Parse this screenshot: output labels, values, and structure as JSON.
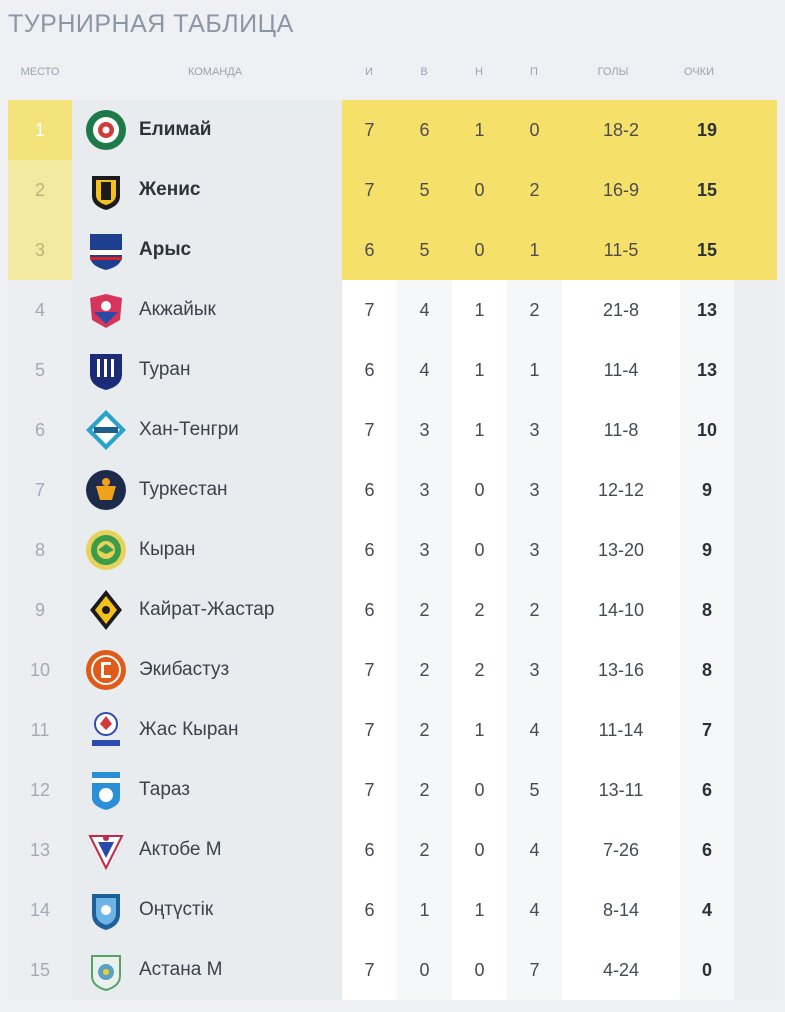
{
  "title": "ТУРНИРНАЯ ТАБЛИЦА",
  "columns": {
    "place": "МЕСТО",
    "team": "КОМАНДА",
    "games": "И",
    "wins": "В",
    "draws": "Н",
    "losses": "П",
    "goals": "ГОЛЫ",
    "points": "ОЧКИ"
  },
  "colors": {
    "highlight": "#f5e06a",
    "first_place": "#f4e27a"
  },
  "rows": [
    {
      "place": "1",
      "team": "Елимай",
      "logo": "elimai-logo",
      "games": "7",
      "wins": "6",
      "draws": "1",
      "losses": "0",
      "goals": "18-2",
      "points": "19"
    },
    {
      "place": "2",
      "team": "Женис",
      "logo": "zhenis-logo",
      "games": "7",
      "wins": "5",
      "draws": "0",
      "losses": "2",
      "goals": "16-9",
      "points": "15"
    },
    {
      "place": "3",
      "team": "Арыс",
      "logo": "arys-logo",
      "games": "6",
      "wins": "5",
      "draws": "0",
      "losses": "1",
      "goals": "11-5",
      "points": "15"
    },
    {
      "place": "4",
      "team": "Акжайык",
      "logo": "akzhaiyk-logo",
      "games": "7",
      "wins": "4",
      "draws": "1",
      "losses": "2",
      "goals": "21-8",
      "points": "13"
    },
    {
      "place": "5",
      "team": "Туран",
      "logo": "turan-logo",
      "games": "6",
      "wins": "4",
      "draws": "1",
      "losses": "1",
      "goals": "11-4",
      "points": "13"
    },
    {
      "place": "6",
      "team": "Хан-Тенгри",
      "logo": "khan-tengri-logo",
      "games": "7",
      "wins": "3",
      "draws": "1",
      "losses": "3",
      "goals": "11-8",
      "points": "10"
    },
    {
      "place": "7",
      "team": "Туркестан",
      "logo": "turkestan-logo",
      "games": "6",
      "wins": "3",
      "draws": "0",
      "losses": "3",
      "goals": "12-12",
      "points": "9"
    },
    {
      "place": "8",
      "team": "Кыран",
      "logo": "kyran-logo",
      "games": "6",
      "wins": "3",
      "draws": "0",
      "losses": "3",
      "goals": "13-20",
      "points": "9"
    },
    {
      "place": "9",
      "team": "Кайрат-Жастар",
      "logo": "kairat-zhastar-logo",
      "games": "6",
      "wins": "2",
      "draws": "2",
      "losses": "2",
      "goals": "14-10",
      "points": "8"
    },
    {
      "place": "10",
      "team": "Экибастуз",
      "logo": "ekibastuz-logo",
      "games": "7",
      "wins": "2",
      "draws": "2",
      "losses": "3",
      "goals": "13-16",
      "points": "8"
    },
    {
      "place": "11",
      "team": "Жас Кыран",
      "logo": "zhas-kyran-logo",
      "games": "7",
      "wins": "2",
      "draws": "1",
      "losses": "4",
      "goals": "11-14",
      "points": "7"
    },
    {
      "place": "12",
      "team": "Тараз",
      "logo": "taraz-logo",
      "games": "7",
      "wins": "2",
      "draws": "0",
      "losses": "5",
      "goals": "13-11",
      "points": "6"
    },
    {
      "place": "13",
      "team": "Актобе М",
      "logo": "aktobe-m-logo",
      "games": "6",
      "wins": "2",
      "draws": "0",
      "losses": "4",
      "goals": "7-26",
      "points": "6"
    },
    {
      "place": "14",
      "team": "Оңтүстік",
      "logo": "ontustik-logo",
      "games": "6",
      "wins": "1",
      "draws": "1",
      "losses": "4",
      "goals": "8-14",
      "points": "4"
    },
    {
      "place": "15",
      "team": "Астана М",
      "logo": "astana-m-logo",
      "games": "7",
      "wins": "0",
      "draws": "0",
      "losses": "7",
      "goals": "4-24",
      "points": "0"
    }
  ]
}
